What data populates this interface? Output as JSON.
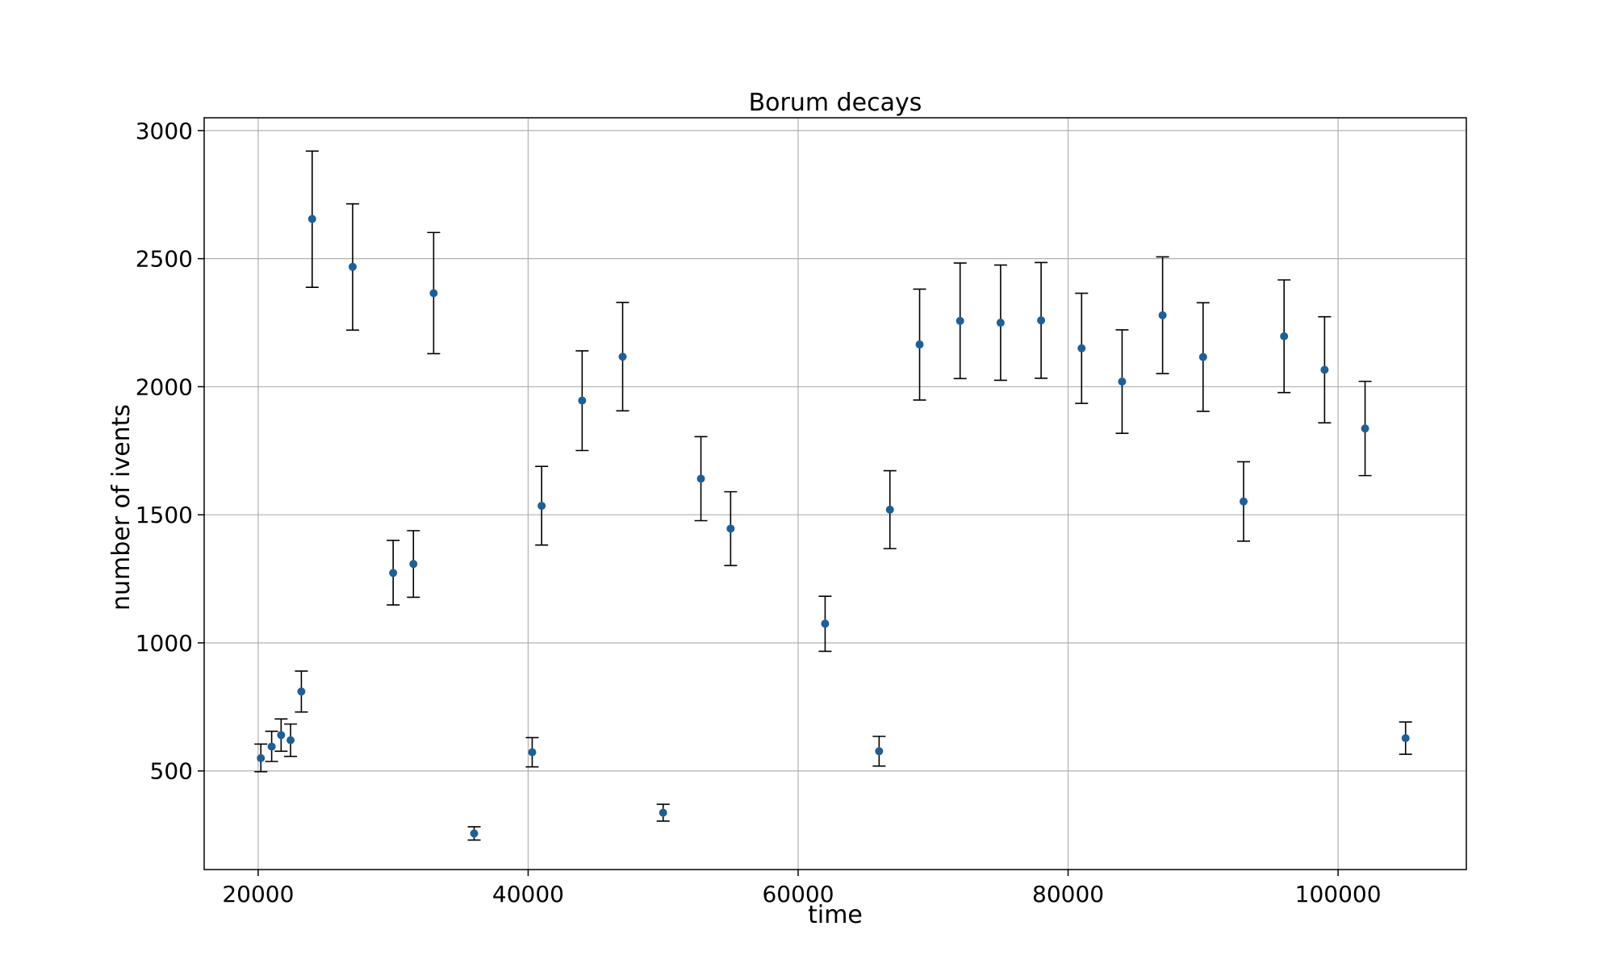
{
  "chart_data": {
    "type": "scatter",
    "title": "Borum decays",
    "xlabel": "time",
    "ylabel": "number of ivents",
    "xlim": [
      16000,
      109500
    ],
    "ylim": [
      115,
      3050
    ],
    "x_ticks": [
      20000,
      40000,
      60000,
      80000,
      100000
    ],
    "y_ticks": [
      500,
      1000,
      1500,
      2000,
      2500,
      3000
    ],
    "grid": true,
    "marker_color": "#1f5f95",
    "errorbar_color": "#000000",
    "series": [
      {
        "points": [
          {
            "x": 20200,
            "y": 550,
            "err_low": 497,
            "err_high": 605
          },
          {
            "x": 21000,
            "y": 595,
            "err_low": 537,
            "err_high": 655
          },
          {
            "x": 21700,
            "y": 640,
            "err_low": 577,
            "err_high": 703
          },
          {
            "x": 22400,
            "y": 620,
            "err_low": 557,
            "err_high": 683
          },
          {
            "x": 23200,
            "y": 810,
            "err_low": 730,
            "err_high": 890
          },
          {
            "x": 24000,
            "y": 2655,
            "err_low": 2388,
            "err_high": 2920
          },
          {
            "x": 27000,
            "y": 2468,
            "err_low": 2221,
            "err_high": 2714
          },
          {
            "x": 30000,
            "y": 1273,
            "err_low": 1148,
            "err_high": 1400
          },
          {
            "x": 31500,
            "y": 1308,
            "err_low": 1178,
            "err_high": 1438
          },
          {
            "x": 33000,
            "y": 2365,
            "err_low": 2129,
            "err_high": 2602
          },
          {
            "x": 36000,
            "y": 256,
            "err_low": 230,
            "err_high": 282
          },
          {
            "x": 40300,
            "y": 573,
            "err_low": 516,
            "err_high": 630
          },
          {
            "x": 41000,
            "y": 1535,
            "err_low": 1382,
            "err_high": 1689
          },
          {
            "x": 44000,
            "y": 1946,
            "err_low": 1751,
            "err_high": 2140
          },
          {
            "x": 47000,
            "y": 2117,
            "err_low": 1906,
            "err_high": 2329
          },
          {
            "x": 50000,
            "y": 337,
            "err_low": 304,
            "err_high": 370
          },
          {
            "x": 52800,
            "y": 1641,
            "err_low": 1477,
            "err_high": 1805
          },
          {
            "x": 55000,
            "y": 1446,
            "err_low": 1302,
            "err_high": 1590
          },
          {
            "x": 62000,
            "y": 1075,
            "err_low": 967,
            "err_high": 1182
          },
          {
            "x": 66000,
            "y": 577,
            "err_low": 519,
            "err_high": 635
          },
          {
            "x": 66800,
            "y": 1520,
            "err_low": 1368,
            "err_high": 1672
          },
          {
            "x": 69000,
            "y": 2165,
            "err_low": 1948,
            "err_high": 2381
          },
          {
            "x": 72000,
            "y": 2257,
            "err_low": 2032,
            "err_high": 2483
          },
          {
            "x": 75000,
            "y": 2250,
            "err_low": 2025,
            "err_high": 2475
          },
          {
            "x": 78000,
            "y": 2259,
            "err_low": 2033,
            "err_high": 2485
          },
          {
            "x": 81000,
            "y": 2150,
            "err_low": 1935,
            "err_high": 2365
          },
          {
            "x": 84000,
            "y": 2020,
            "err_low": 1818,
            "err_high": 2222
          },
          {
            "x": 87000,
            "y": 2279,
            "err_low": 2051,
            "err_high": 2507
          },
          {
            "x": 90000,
            "y": 2116,
            "err_low": 1904,
            "err_high": 2328
          },
          {
            "x": 93000,
            "y": 1552,
            "err_low": 1397,
            "err_high": 1707
          },
          {
            "x": 96000,
            "y": 2197,
            "err_low": 1977,
            "err_high": 2417
          },
          {
            "x": 99000,
            "y": 2066,
            "err_low": 1859,
            "err_high": 2273
          },
          {
            "x": 102000,
            "y": 1837,
            "err_low": 1653,
            "err_high": 2021
          },
          {
            "x": 105000,
            "y": 628,
            "err_low": 565,
            "err_high": 691
          }
        ]
      }
    ]
  }
}
